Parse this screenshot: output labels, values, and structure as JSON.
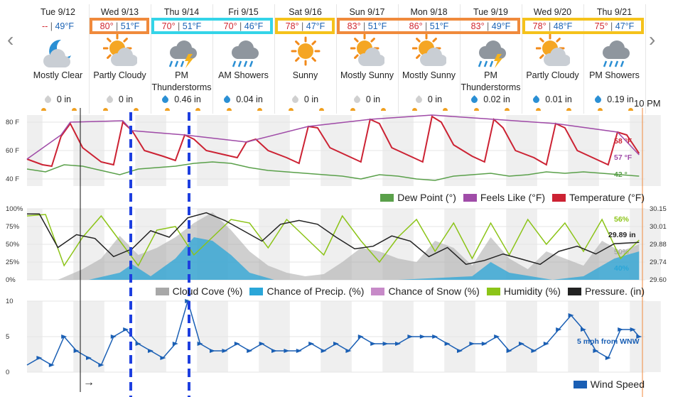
{
  "header": {
    "time_label": "10 PM",
    "now_arrow": "→"
  },
  "days": [
    {
      "name": "Tue 9/12",
      "hi": "--",
      "lo": "49°F",
      "icon": "moon-cloud-icon",
      "condition": "Mostly Clear",
      "precip": "0 in",
      "drop": "gray",
      "highlight": ""
    },
    {
      "name": "Wed 9/13",
      "hi": "80°",
      "lo": "51°F",
      "icon": "sun-cloud-icon",
      "condition": "Partly Cloudy",
      "precip": "0 in",
      "drop": "gray",
      "highlight": "#f08a3c"
    },
    {
      "name": "Thu 9/14",
      "hi": "70°",
      "lo": "51°F",
      "icon": "thunderstorm-icon",
      "condition": "PM Thunderstorms",
      "precip": "0.46 in",
      "drop": "blue",
      "highlight": "#34d4e8"
    },
    {
      "name": "Fri 9/15",
      "hi": "70°",
      "lo": "46°F",
      "icon": "rain-cloud-icon",
      "condition": "AM Showers",
      "precip": "0.04 in",
      "drop": "blue",
      "highlight": "#34d4e8"
    },
    {
      "name": "Sat 9/16",
      "hi": "78°",
      "lo": "47°F",
      "icon": "sun-icon",
      "condition": "Sunny",
      "precip": "0 in",
      "drop": "gray",
      "highlight": "#f5c21b"
    },
    {
      "name": "Sun 9/17",
      "hi": "83°",
      "lo": "51°F",
      "icon": "sun-cloud-icon",
      "condition": "Mostly Sunny",
      "precip": "0 in",
      "drop": "gray",
      "highlight": "#f08a3c"
    },
    {
      "name": "Mon 9/18",
      "hi": "86°",
      "lo": "51°F",
      "icon": "sun-cloud-icon",
      "condition": "Mostly Sunny",
      "precip": "0 in",
      "drop": "gray",
      "highlight": "#f08a3c"
    },
    {
      "name": "Tue 9/19",
      "hi": "83°",
      "lo": "49°F",
      "icon": "thunderstorm-icon",
      "condition": "PM Thunderstorms",
      "precip": "0.02 in",
      "drop": "blue",
      "highlight": "#f08a3c"
    },
    {
      "name": "Wed 9/20",
      "hi": "78°",
      "lo": "48°F",
      "icon": "sun-cloud-icon",
      "condition": "Partly Cloudy",
      "precip": "0.01 in",
      "drop": "blue",
      "highlight": "#f5c21b"
    },
    {
      "name": "Thu 9/21",
      "hi": "75°",
      "lo": "47°F",
      "icon": "rain-cloud-icon",
      "condition": "PM Showers",
      "precip": "0.19 in",
      "drop": "blue",
      "highlight": "#f5c21b"
    }
  ],
  "chart_data": [
    {
      "type": "line",
      "ylim": [
        35,
        85
      ],
      "yticks": [
        "80 F",
        "60 F",
        "40 F"
      ],
      "x_unit": "day index (0 = Tue 9/12 00:00)",
      "series": [
        {
          "name": "Temperature (°F)",
          "color": "#cc2233",
          "end_label": "58 °F",
          "x": [
            0,
            0.25,
            0.4,
            0.55,
            0.7,
            0.9,
            1.2,
            1.4,
            1.55,
            1.7,
            1.9,
            2.2,
            2.4,
            2.55,
            2.7,
            2.9,
            3.2,
            3.4,
            3.55,
            3.7,
            3.9,
            4.2,
            4.4,
            4.55,
            4.7,
            4.9,
            5.2,
            5.4,
            5.55,
            5.7,
            5.9,
            6.2,
            6.4,
            6.55,
            6.7,
            6.9,
            7.2,
            7.4,
            7.55,
            7.7,
            7.9,
            8.2,
            8.4,
            8.55,
            8.7,
            8.9,
            9.2,
            9.4,
            9.55,
            9.7,
            9.9
          ],
          "values": [
            54,
            50,
            49,
            70,
            79,
            62,
            52,
            50,
            80,
            74,
            60,
            56,
            53,
            71,
            68,
            60,
            57,
            55,
            66,
            68,
            60,
            55,
            51,
            77,
            76,
            62,
            56,
            52,
            82,
            79,
            62,
            56,
            52,
            84,
            80,
            64,
            56,
            52,
            82,
            76,
            60,
            55,
            50,
            79,
            76,
            60,
            54,
            50,
            73,
            71,
            58
          ]
        },
        {
          "name": "Feels Like (°F)",
          "color": "#a04ca8",
          "end_label": "57 °F",
          "x": [
            0,
            0.55,
            0.7,
            1.55,
            1.7,
            2.55,
            3.55,
            4.55,
            5.55,
            6.55,
            7.55,
            8.55,
            9.55,
            9.9
          ],
          "values": [
            54,
            71,
            80,
            81,
            74,
            71,
            66,
            77,
            82,
            85,
            82,
            79,
            73,
            57
          ]
        },
        {
          "name": "Dew Point (°)",
          "color": "#5aa04a",
          "end_label": "42 °",
          "x": [
            0,
            0.3,
            0.6,
            0.9,
            1.2,
            1.5,
            1.8,
            2.1,
            2.4,
            2.7,
            3.0,
            3.3,
            3.6,
            3.9,
            4.2,
            4.5,
            4.8,
            5.1,
            5.4,
            5.7,
            6.0,
            6.3,
            6.6,
            6.9,
            7.2,
            7.5,
            7.8,
            8.1,
            8.4,
            8.7,
            9.0,
            9.3,
            9.6,
            9.9
          ],
          "values": [
            47,
            45,
            50,
            49,
            46,
            43,
            47,
            48,
            49,
            51,
            52,
            51,
            48,
            46,
            45,
            44,
            43,
            42,
            40,
            43,
            42,
            40,
            39,
            42,
            43,
            44,
            42,
            43,
            45,
            44,
            45,
            44,
            43,
            42
          ]
        }
      ]
    },
    {
      "type": "area",
      "ylim": [
        0,
        100
      ],
      "yticks": [
        "100%",
        "75%",
        "50%",
        "25%",
        "0%"
      ],
      "y2ticks": [
        "30.15",
        "30.01",
        "29.88",
        "29.74",
        "29.60"
      ],
      "y2lim": [
        29.6,
        30.15
      ],
      "x_unit": "day index",
      "series": [
        {
          "name": "Cloud Cover (%)",
          "color": "#a8a8a8",
          "end_label": "50%",
          "x": [
            0,
            0.5,
            0.9,
            1.2,
            1.5,
            1.8,
            2.1,
            2.4,
            2.7,
            3.0,
            3.3,
            3.6,
            3.9,
            4.2,
            4.5,
            4.8,
            5.1,
            5.4,
            5.7,
            6.0,
            6.3,
            6.6,
            6.9,
            7.2,
            7.5,
            7.8,
            8.1,
            8.4,
            8.7,
            9.0,
            9.3,
            9.6,
            9.9
          ],
          "values": [
            0,
            0,
            15,
            30,
            62,
            35,
            45,
            60,
            80,
            95,
            70,
            40,
            20,
            10,
            5,
            8,
            25,
            45,
            40,
            30,
            25,
            55,
            45,
            20,
            60,
            30,
            15,
            40,
            30,
            20,
            55,
            40,
            50
          ]
        },
        {
          "name": "Chance of Precip. (%)",
          "color": "#2aa6d8",
          "end_label": "40%",
          "x": [
            0,
            1.0,
            1.5,
            1.7,
            2.0,
            2.4,
            2.7,
            3.0,
            3.3,
            3.6,
            4.0,
            6.0,
            7.2,
            7.5,
            7.8,
            8.5,
            9.0,
            9.5,
            9.9
          ],
          "values": [
            0,
            0,
            10,
            22,
            5,
            30,
            60,
            55,
            35,
            10,
            0,
            0,
            5,
            25,
            10,
            0,
            5,
            30,
            40
          ]
        },
        {
          "name": "Chance of Snow (%)",
          "color": "#c78ac8",
          "x": [
            0,
            9.9
          ],
          "values": [
            0,
            0
          ]
        },
        {
          "name": "Humidity (%)",
          "color": "#8cc418",
          "end_label": "56%",
          "x": [
            0,
            0.3,
            0.6,
            0.9,
            1.2,
            1.5,
            1.8,
            2.1,
            2.4,
            2.7,
            3.0,
            3.3,
            3.6,
            3.9,
            4.2,
            4.5,
            4.8,
            5.1,
            5.4,
            5.7,
            6.0,
            6.3,
            6.6,
            6.9,
            7.2,
            7.5,
            7.8,
            8.1,
            8.4,
            8.7,
            9.0,
            9.3,
            9.6,
            9.9
          ],
          "values": [
            90,
            92,
            20,
            60,
            90,
            55,
            20,
            70,
            75,
            35,
            60,
            85,
            80,
            45,
            85,
            60,
            35,
            90,
            55,
            25,
            60,
            85,
            40,
            80,
            30,
            80,
            35,
            85,
            50,
            80,
            40,
            85,
            30,
            56
          ]
        },
        {
          "name": "Pressure. (in)",
          "color": "#222222",
          "end_label": "29.89 in",
          "x": [
            0,
            0.2,
            0.5,
            0.8,
            1.1,
            1.4,
            1.7,
            2.0,
            2.3,
            2.6,
            2.9,
            3.2,
            3.5,
            3.8,
            4.1,
            4.4,
            4.7,
            5.0,
            5.3,
            5.6,
            5.9,
            6.2,
            6.5,
            6.8,
            7.1,
            7.4,
            7.7,
            8.0,
            8.3,
            8.6,
            8.9,
            9.2,
            9.5,
            9.9
          ],
          "values": [
            30.11,
            30.11,
            29.85,
            29.95,
            29.92,
            29.78,
            29.84,
            29.98,
            29.93,
            30.08,
            30.12,
            30.06,
            29.98,
            29.9,
            30.03,
            30.06,
            30.03,
            29.93,
            29.84,
            29.86,
            29.94,
            29.9,
            29.78,
            29.85,
            29.72,
            29.75,
            29.8,
            29.76,
            29.72,
            29.82,
            29.86,
            29.8,
            29.88,
            29.89
          ]
        }
      ]
    },
    {
      "type": "line",
      "ylim": [
        0,
        10
      ],
      "yticks": [
        "10",
        "5",
        "0"
      ],
      "x_unit": "day index",
      "series": [
        {
          "name": "Wind Speed",
          "color": "#1a5fb4",
          "end_label": "5 mph from WNW",
          "x": [
            0,
            0.2,
            0.4,
            0.6,
            0.8,
            1.0,
            1.2,
            1.4,
            1.6,
            1.8,
            2.0,
            2.2,
            2.4,
            2.6,
            2.8,
            3.0,
            3.2,
            3.4,
            3.6,
            3.8,
            4.0,
            4.2,
            4.4,
            4.6,
            4.8,
            5.0,
            5.2,
            5.4,
            5.6,
            5.8,
            6.0,
            6.2,
            6.4,
            6.6,
            6.8,
            7.0,
            7.2,
            7.4,
            7.6,
            7.8,
            8.0,
            8.2,
            8.4,
            8.6,
            8.8,
            9.0,
            9.2,
            9.4,
            9.6,
            9.8,
            9.9
          ],
          "values": [
            1,
            2,
            1,
            5,
            3,
            2,
            1,
            5,
            6,
            4,
            3,
            2,
            4,
            10,
            4,
            3,
            3,
            4,
            3,
            4,
            3,
            3,
            3,
            4,
            3,
            4,
            3,
            5,
            4,
            4,
            4,
            5,
            5,
            5,
            4,
            3,
            4,
            4,
            5,
            3,
            4,
            3,
            4,
            6,
            8,
            6,
            3,
            2,
            6,
            6,
            5
          ]
        }
      ]
    }
  ],
  "legends": {
    "temp": [
      {
        "label": "Dew Point (°)",
        "color": "#5aa04a"
      },
      {
        "label": "Feels Like (°F)",
        "color": "#a04ca8"
      },
      {
        "label": "Temperature (°F)",
        "color": "#cc2233"
      }
    ],
    "humidity": [
      {
        "label": "Cloud Cove (%)",
        "color": "#a8a8a8"
      },
      {
        "label": "Chance of Precip. (%)",
        "color": "#2aa6d8"
      },
      {
        "label": "Chance of Snow (%)",
        "color": "#c78ac8"
      },
      {
        "label": "Humidity (%)",
        "color": "#8cc418"
      },
      {
        "label": "Pressure. (in)",
        "color": "#222222"
      }
    ],
    "wind": [
      {
        "label": "Wind Speed",
        "color": "#1a5fb4"
      }
    ]
  }
}
